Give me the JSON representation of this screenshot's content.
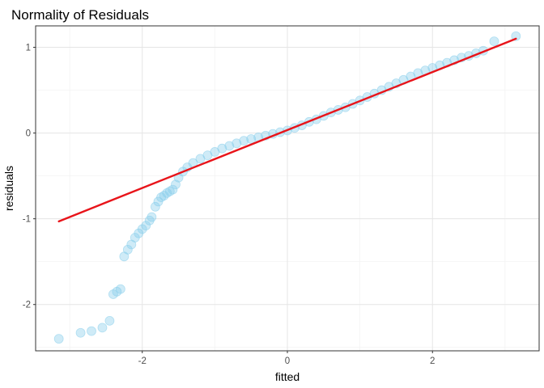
{
  "chart_data": {
    "type": "scatter",
    "title": "Normality of Residuals",
    "xlabel": "fitted",
    "ylabel": "residuals",
    "xlim": [
      -3.47,
      3.47
    ],
    "ylim": [
      -2.54,
      1.25
    ],
    "xticks": [
      -2,
      0,
      2
    ],
    "yticks": [
      -2,
      -1,
      0,
      1
    ],
    "grid": true,
    "legend": "none",
    "colors": {
      "points_fill": "#87CEEB",
      "points_stroke": "#87CEEB",
      "line": "#E8141A"
    },
    "series": [
      {
        "kind": "points",
        "x": [
          -3.15,
          -2.85,
          -2.7,
          -2.55,
          -2.45,
          -2.4,
          -2.35,
          -2.3,
          -2.25,
          -2.2,
          -2.15,
          -2.1,
          -2.05,
          -2.0,
          -1.95,
          -1.9,
          -1.87,
          -1.82,
          -1.78,
          -1.74,
          -1.7,
          -1.66,
          -1.62,
          -1.58,
          -1.54,
          -1.5,
          -1.44,
          -1.38,
          -1.3,
          -1.2,
          -1.1,
          -1.0,
          -0.9,
          -0.8,
          -0.7,
          -0.6,
          -0.5,
          -0.4,
          -0.3,
          -0.2,
          -0.1,
          0.0,
          0.1,
          0.2,
          0.3,
          0.4,
          0.5,
          0.6,
          0.7,
          0.8,
          0.9,
          1.0,
          1.1,
          1.2,
          1.3,
          1.4,
          1.5,
          1.6,
          1.7,
          1.8,
          1.9,
          2.0,
          2.1,
          2.2,
          2.3,
          2.4,
          2.5,
          2.6,
          2.7,
          2.85,
          3.15
        ],
        "y": [
          -2.4,
          -2.33,
          -2.31,
          -2.27,
          -2.19,
          -1.88,
          -1.85,
          -1.82,
          -1.44,
          -1.36,
          -1.3,
          -1.22,
          -1.17,
          -1.12,
          -1.08,
          -1.02,
          -0.98,
          -0.86,
          -0.8,
          -0.75,
          -0.73,
          -0.7,
          -0.68,
          -0.66,
          -0.6,
          -0.52,
          -0.45,
          -0.4,
          -0.35,
          -0.3,
          -0.26,
          -0.22,
          -0.18,
          -0.15,
          -0.12,
          -0.09,
          -0.07,
          -0.05,
          -0.03,
          -0.01,
          0.01,
          0.03,
          0.06,
          0.09,
          0.13,
          0.16,
          0.2,
          0.24,
          0.27,
          0.3,
          0.34,
          0.38,
          0.42,
          0.46,
          0.5,
          0.54,
          0.58,
          0.62,
          0.66,
          0.7,
          0.73,
          0.76,
          0.79,
          0.82,
          0.85,
          0.88,
          0.9,
          0.93,
          0.96,
          1.07,
          1.13
        ]
      },
      {
        "kind": "line",
        "x": [
          -3.15,
          3.15
        ],
        "y": [
          -1.03,
          1.1
        ]
      }
    ]
  }
}
